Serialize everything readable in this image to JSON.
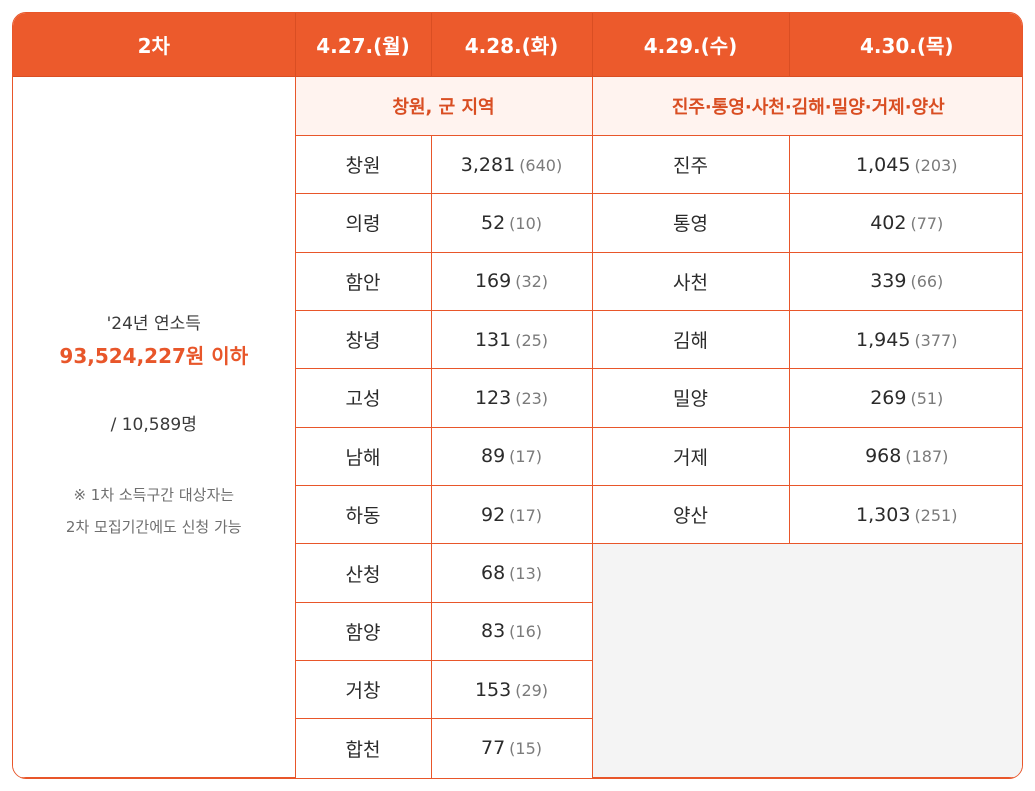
{
  "header": {
    "round": "2차",
    "d1": "4.27.(월)",
    "d2": "4.28.(화)",
    "d3": "4.29.(수)",
    "d4": "4.30.(목)"
  },
  "groups": {
    "left": "창원, 군 지역",
    "right": "진주·통영·사천·김해·밀양·거제·양산"
  },
  "summary": {
    "line1": "'24년 연소득",
    "amount": "93,524,227원 이하",
    "people": "/ 10,589명",
    "note1": "※ 1차 소득구간 대상자는",
    "note2": "2차 모집기간에도 신청 가능"
  },
  "left_rows": [
    {
      "region": "창원",
      "count": "3,281",
      "paren": "(640)"
    },
    {
      "region": "의령",
      "count": "52",
      "paren": "(10)"
    },
    {
      "region": "함안",
      "count": "169",
      "paren": "(32)"
    },
    {
      "region": "창녕",
      "count": "131",
      "paren": "(25)"
    },
    {
      "region": "고성",
      "count": "123",
      "paren": "(23)"
    },
    {
      "region": "남해",
      "count": "89",
      "paren": "(17)"
    },
    {
      "region": "하동",
      "count": "92",
      "paren": "(17)"
    },
    {
      "region": "산청",
      "count": "68",
      "paren": "(13)"
    },
    {
      "region": "함양",
      "count": "83",
      "paren": "(16)"
    },
    {
      "region": "거창",
      "count": "153",
      "paren": "(29)"
    },
    {
      "region": "합천",
      "count": "77",
      "paren": "(15)"
    }
  ],
  "right_rows": [
    {
      "region": "진주",
      "count": "1,045",
      "paren": "(203)"
    },
    {
      "region": "통영",
      "count": "402",
      "paren": "(77)"
    },
    {
      "region": "사천",
      "count": "339",
      "paren": "(66)"
    },
    {
      "region": "김해",
      "count": "1,945",
      "paren": "(377)"
    },
    {
      "region": "밀양",
      "count": "269",
      "paren": "(51)"
    },
    {
      "region": "거제",
      "count": "968",
      "paren": "(187)"
    },
    {
      "region": "양산",
      "count": "1,303",
      "paren": "(251)"
    }
  ]
}
